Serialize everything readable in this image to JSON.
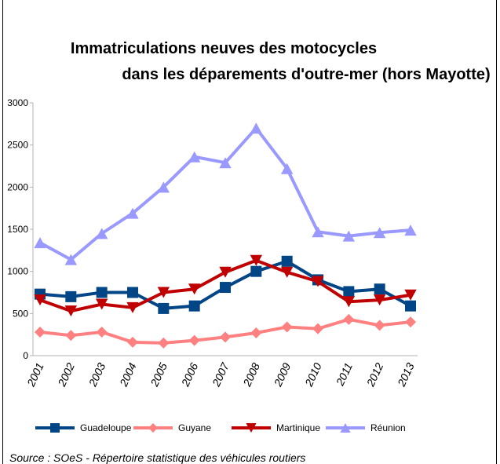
{
  "chart_data": {
    "type": "line",
    "title": [
      "Immatriculations neuves des motocycles",
      "dans les déparements d'outre-mer (hors Mayotte)"
    ],
    "categories": [
      "2001",
      "2002",
      "2003",
      "2004",
      "2005",
      "2006",
      "2007",
      "2008",
      "2009",
      "2010",
      "2011",
      "2012",
      "2013"
    ],
    "series": [
      {
        "name": "Guadeloupe",
        "color": "#004586",
        "marker": "square",
        "values": [
          730,
          700,
          750,
          750,
          560,
          590,
          810,
          1000,
          1120,
          900,
          760,
          790,
          590
        ]
      },
      {
        "name": "Guyane",
        "color": "#ff8080",
        "marker": "diamond",
        "values": [
          280,
          240,
          280,
          160,
          150,
          180,
          220,
          270,
          340,
          320,
          430,
          360,
          400
        ]
      },
      {
        "name": "Martinique",
        "color": "#c00000",
        "marker": "triangle-down",
        "values": [
          660,
          530,
          610,
          570,
          750,
          790,
          990,
          1130,
          990,
          880,
          640,
          660,
          720
        ]
      },
      {
        "name": "Réunion",
        "color": "#9999ff",
        "marker": "triangle-up",
        "values": [
          1340,
          1140,
          1450,
          1690,
          2000,
          2360,
          2290,
          2700,
          2220,
          1470,
          1420,
          1460,
          1490
        ]
      }
    ],
    "ylim": [
      0,
      3000
    ],
    "yticks": [
      0,
      500,
      1000,
      1500,
      2000,
      2500,
      3000
    ],
    "source": "Source : SOeS - Répertoire statistique des véhicules routiers"
  }
}
